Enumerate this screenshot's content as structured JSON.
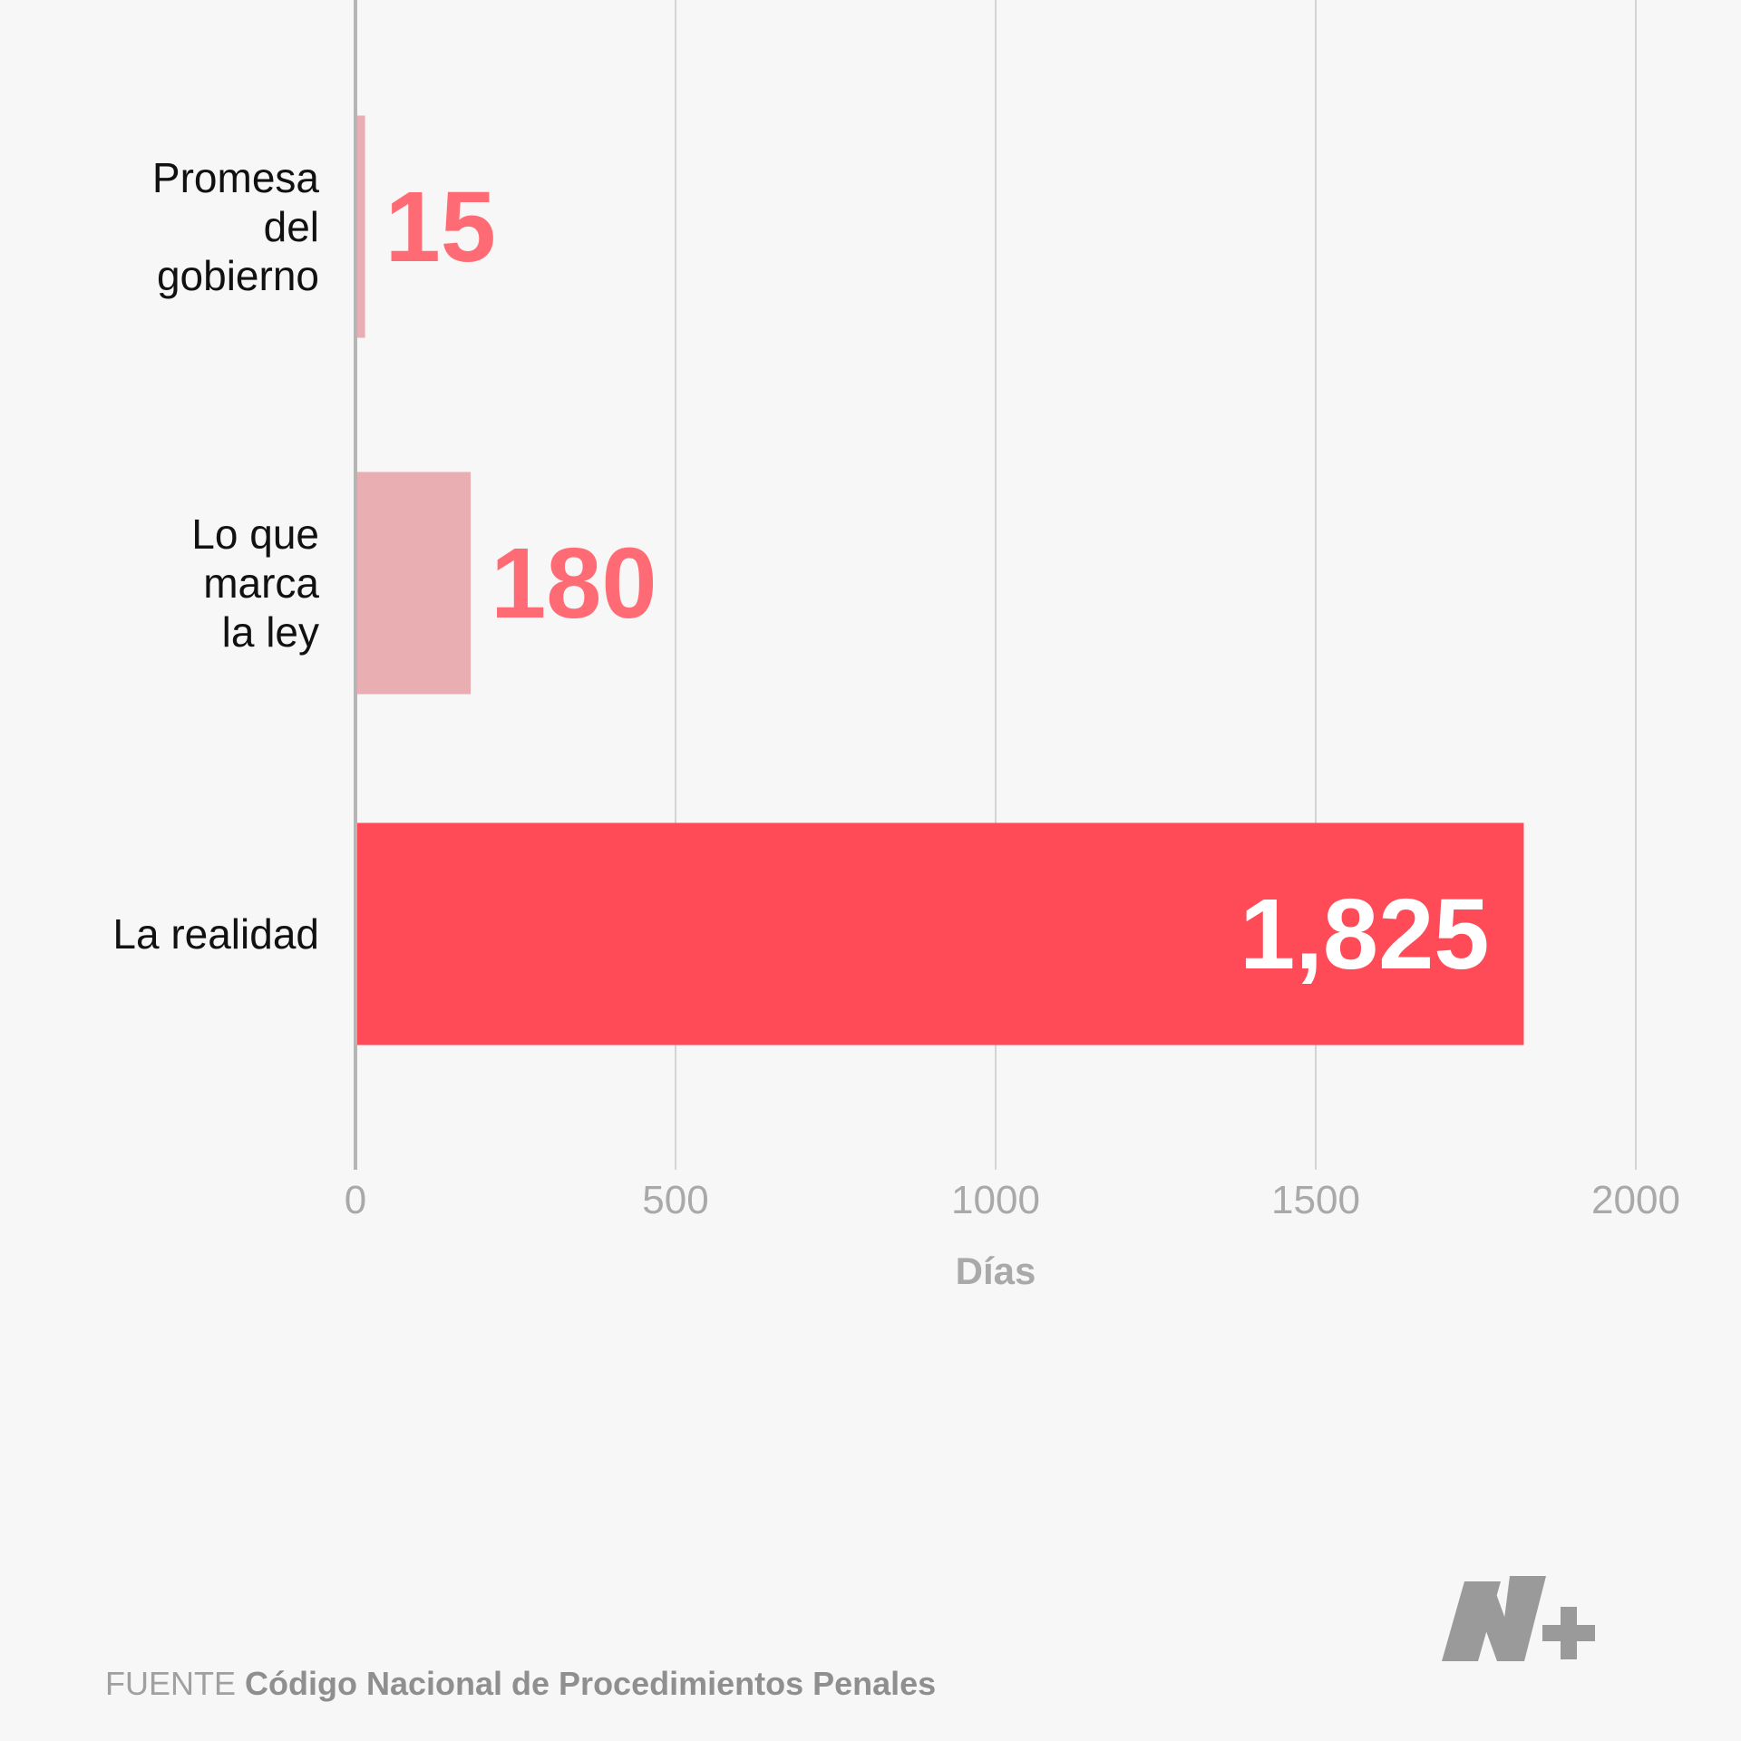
{
  "chart_data": {
    "type": "bar",
    "orientation": "horizontal",
    "categories": [
      [
        "Promesa",
        "del",
        "gobierno"
      ],
      [
        "Lo que",
        "marca",
        "la ley"
      ],
      [
        "La realidad"
      ]
    ],
    "values": [
      15,
      180,
      1825
    ],
    "value_labels": [
      "15",
      "180",
      "1,825"
    ],
    "bar_colors": [
      "#e8aeb2",
      "#e8aeb2",
      "#ff4b57"
    ],
    "value_label_colors": [
      "#ff6b74",
      "#ff6b74",
      "#ffffff"
    ],
    "value_label_inside": [
      false,
      false,
      true
    ],
    "xlabel": "Días",
    "ylabel": "",
    "xlim": [
      0,
      2000
    ],
    "xticks": [
      0,
      500,
      1000,
      1500,
      2000
    ],
    "xtick_labels": [
      "0",
      "500",
      "1000",
      "1500",
      "2000"
    ],
    "grid": "vertical",
    "gridline_color": "#d4d4d4",
    "axis_color": "#b5b5b5"
  },
  "source": {
    "prefix": "FUENTE",
    "name": "Código Nacional de Procedimientos Penales"
  },
  "logo": {
    "name": "n-plus-logo",
    "color": "#9a9a9a"
  }
}
